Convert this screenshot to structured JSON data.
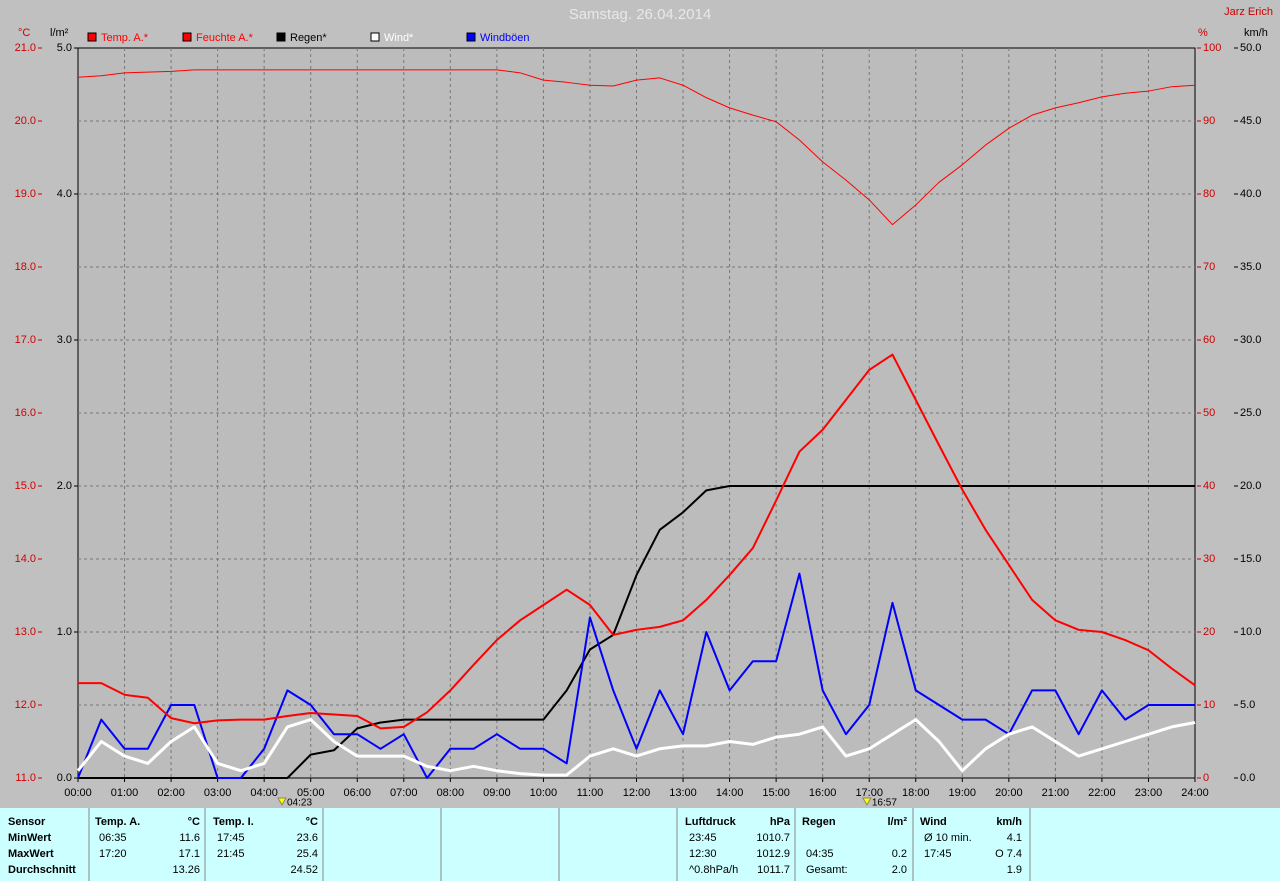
{
  "chart_data": {
    "type": "line",
    "title": "Samstag. 26.04.2014",
    "author": "Jarz Erich",
    "y_unit": "°C",
    "y2_unit": "%",
    "y3_unit": "l/m²",
    "y4_unit": "km/h",
    "x": [
      0,
      0.5,
      1,
      1.5,
      2,
      2.5,
      3,
      3.5,
      4,
      4.5,
      5,
      5.5,
      6,
      6.5,
      7,
      7.5,
      8,
      8.5,
      9,
      9.5,
      10,
      10.5,
      11,
      11.5,
      12,
      12.5,
      13,
      13.5,
      14,
      14.5,
      15,
      15.5,
      16,
      16.5,
      17,
      17.5,
      18,
      18.5,
      19,
      19.5,
      20,
      20.5,
      21,
      21.5,
      22,
      22.5,
      23,
      23.5,
      24
    ],
    "xlim": [
      0,
      24
    ],
    "xticks": [
      {
        "value": 0,
        "label": "00:00"
      },
      {
        "value": 1,
        "label": "01:00"
      },
      {
        "value": 2,
        "label": "02:00"
      },
      {
        "value": 3,
        "label": "03:00"
      },
      {
        "value": 4,
        "label": "04:00"
      },
      {
        "value": 5,
        "label": "05:00"
      },
      {
        "value": 6,
        "label": "06:00"
      },
      {
        "value": 7,
        "label": "07:00"
      },
      {
        "value": 8,
        "label": "08:00"
      },
      {
        "value": 9,
        "label": "09:00"
      },
      {
        "value": 10,
        "label": "10:00"
      },
      {
        "value": 11,
        "label": "11:00"
      },
      {
        "value": 12,
        "label": "12:00"
      },
      {
        "value": 13,
        "label": "13:00"
      },
      {
        "value": 14,
        "label": "14:00"
      },
      {
        "value": 15,
        "label": "15:00"
      },
      {
        "value": 16,
        "label": "16:00"
      },
      {
        "value": 17,
        "label": "17:00"
      },
      {
        "value": 18,
        "label": "18:00"
      },
      {
        "value": 19,
        "label": "19:00"
      },
      {
        "value": 20,
        "label": "20:00"
      },
      {
        "value": 21,
        "label": "21:00"
      },
      {
        "value": 22,
        "label": "22:00"
      },
      {
        "value": 23,
        "label": "23:00"
      },
      {
        "value": 24,
        "label": "24:00"
      }
    ],
    "ylim": [
      11,
      21
    ],
    "yticks": [
      {
        "value": 11,
        "label": "11.0"
      },
      {
        "value": 12,
        "label": "12.0"
      },
      {
        "value": 13,
        "label": "13.0"
      },
      {
        "value": 14,
        "label": "14.0"
      },
      {
        "value": 15,
        "label": "15.0"
      },
      {
        "value": 16,
        "label": "16.0"
      },
      {
        "value": 17,
        "label": "17.0"
      },
      {
        "value": 18,
        "label": "18.0"
      },
      {
        "value": 19,
        "label": "19.0"
      },
      {
        "value": 20,
        "label": "20.0"
      },
      {
        "value": 21,
        "label": "21.0"
      }
    ],
    "y2lim": [
      0,
      100
    ],
    "y2ticks": [
      0,
      10,
      20,
      30,
      40,
      50,
      60,
      70,
      80,
      90,
      100
    ],
    "y3lim": [
      0,
      5
    ],
    "y3ticks": [
      {
        "value": 0,
        "label": "0.0"
      },
      {
        "value": 1,
        "label": "1.0"
      },
      {
        "value": 2,
        "label": "2.0"
      },
      {
        "value": 3,
        "label": "3.0"
      },
      {
        "value": 4,
        "label": "4.0"
      },
      {
        "value": 5,
        "label": "5.0"
      }
    ],
    "y4lim": [
      0,
      50
    ],
    "y4ticks": [
      {
        "value": 0,
        "label": "0.0"
      },
      {
        "value": 5,
        "label": "5.0"
      },
      {
        "value": 10,
        "label": "10.0"
      },
      {
        "value": 15,
        "label": "15.0"
      },
      {
        "value": 20,
        "label": "20.0"
      },
      {
        "value": 25,
        "label": "25.0"
      },
      {
        "value": 30,
        "label": "30.0"
      },
      {
        "value": 35,
        "label": "35.0"
      },
      {
        "value": 40,
        "label": "40.0"
      },
      {
        "value": 45,
        "label": "45.0"
      },
      {
        "value": 50,
        "label": "50.0"
      }
    ],
    "grid": true,
    "series": [
      {
        "name": "Temp. A.*",
        "color": "#ff0000",
        "axis": "y",
        "width": 2,
        "values": [
          12.3,
          12.3,
          12.14,
          12.1,
          11.82,
          11.75,
          11.79,
          11.8,
          11.8,
          11.85,
          11.89,
          11.87,
          11.85,
          11.68,
          11.7,
          11.9,
          12.2,
          12.55,
          12.89,
          13.16,
          13.37,
          13.58,
          13.37,
          12.96,
          13.03,
          13.07,
          13.16,
          13.44,
          13.78,
          14.15,
          14.8,
          15.47,
          15.77,
          16.18,
          16.59,
          16.8,
          16.18,
          15.56,
          14.95,
          14.4,
          13.92,
          13.44,
          13.16,
          13.03,
          13.0,
          12.89,
          12.75,
          12.5,
          12.27
        ]
      },
      {
        "name": "Feuchte A.*",
        "color": "#ff0000",
        "axis": "y2",
        "width": 1,
        "values": [
          96,
          96.2,
          96.6,
          96.7,
          96.8,
          97,
          97,
          97,
          97,
          97,
          97,
          97,
          97,
          97,
          97,
          97,
          97,
          97,
          97,
          96.6,
          95.6,
          95.3,
          94.9,
          94.8,
          95.6,
          95.9,
          94.9,
          93.2,
          91.8,
          90.8,
          89.9,
          87.4,
          84.4,
          81.9,
          79.2,
          75.8,
          78.5,
          81.6,
          84,
          86.7,
          89,
          90.8,
          91.8,
          92.5,
          93.3,
          93.8,
          94.1,
          94.7,
          94.9
        ]
      },
      {
        "name": "Regen*",
        "color": "#000000",
        "axis": "y3",
        "width": 2,
        "values": [
          0,
          0,
          0,
          0,
          0,
          0,
          0,
          0,
          0,
          0,
          0.16,
          0.19,
          0.34,
          0.38,
          0.4,
          0.4,
          0.4,
          0.4,
          0.4,
          0.4,
          0.4,
          0.6,
          0.88,
          0.98,
          1.39,
          1.7,
          1.82,
          1.97,
          2.0,
          2.0,
          2.0,
          2.0,
          2.0,
          2.0,
          2.0,
          2.0,
          2.0,
          2.0,
          2.0,
          2.0,
          2.0,
          2.0,
          2.0,
          2.0,
          2.0,
          2.0,
          2.0,
          2.0,
          2.0
        ]
      },
      {
        "name": "Wind*",
        "color": "#ffffff",
        "axis": "y4",
        "width": 3,
        "values": [
          0.5,
          2.5,
          1.5,
          1,
          2.5,
          3.5,
          1,
          0.5,
          1,
          3.5,
          4,
          2.5,
          1.5,
          1.5,
          1.5,
          0.8,
          0.5,
          0.8,
          0.5,
          0.3,
          0.2,
          0.2,
          1.5,
          2,
          1.5,
          2,
          2.2,
          2.2,
          2.5,
          2.3,
          2.8,
          3,
          3.5,
          1.5,
          2,
          3,
          4,
          2.5,
          0.5,
          2,
          3,
          3.5,
          2.5,
          1.5,
          2,
          2.5,
          3,
          3.5,
          3.8
        ]
      },
      {
        "name": "Windböen",
        "color": "#0000ff",
        "axis": "y4",
        "width": 2,
        "values": [
          0,
          4,
          2,
          2,
          5,
          5,
          0,
          0,
          2,
          6,
          5,
          3,
          3,
          2,
          3,
          0,
          2,
          2,
          3,
          2,
          2,
          1,
          11,
          6,
          2,
          6,
          3,
          10,
          6,
          8,
          8,
          14,
          6,
          3,
          5,
          12,
          6,
          5,
          4,
          4,
          3,
          6,
          6,
          3,
          6,
          4,
          5,
          5,
          5
        ]
      }
    ],
    "annotations": [
      {
        "x": 4.383,
        "label": "04:23"
      },
      {
        "x": 16.95,
        "label": "16:57"
      }
    ]
  },
  "table": {
    "labels": [
      "Sensor",
      "MinWert",
      "MaxWert",
      "Durchschnitt"
    ],
    "groups": [
      {
        "name": "Temp. A.",
        "unit": "°C",
        "rows": [
          [
            "06:35",
            "11.6"
          ],
          [
            "17:20",
            "17.1"
          ],
          [
            null,
            "13.26"
          ]
        ]
      },
      {
        "name": "Temp. I.",
        "unit": "°C",
        "rows": [
          [
            "17:45",
            "23.6"
          ],
          [
            "21:45",
            "25.4"
          ],
          [
            null,
            "24.52"
          ]
        ]
      },
      {
        "name": "Luftdruck",
        "unit": "hPa",
        "rows": [
          [
            "23:45",
            "1010.7"
          ],
          [
            "12:30",
            "1012.9"
          ],
          [
            "^0.8hPa/h",
            "1011.7"
          ]
        ]
      },
      {
        "name": "Regen",
        "unit": "l/m²",
        "rows": [
          [
            null,
            null
          ],
          [
            "04:35",
            "0.2"
          ],
          [
            "Gesamt:",
            "2.0"
          ]
        ]
      },
      {
        "name": "Wind",
        "unit": "km/h",
        "rows": [
          [
            "Ø 10 min.",
            "4.1"
          ],
          [
            "17:45",
            "O 7.4"
          ],
          [
            null,
            "1.9"
          ]
        ]
      }
    ]
  }
}
